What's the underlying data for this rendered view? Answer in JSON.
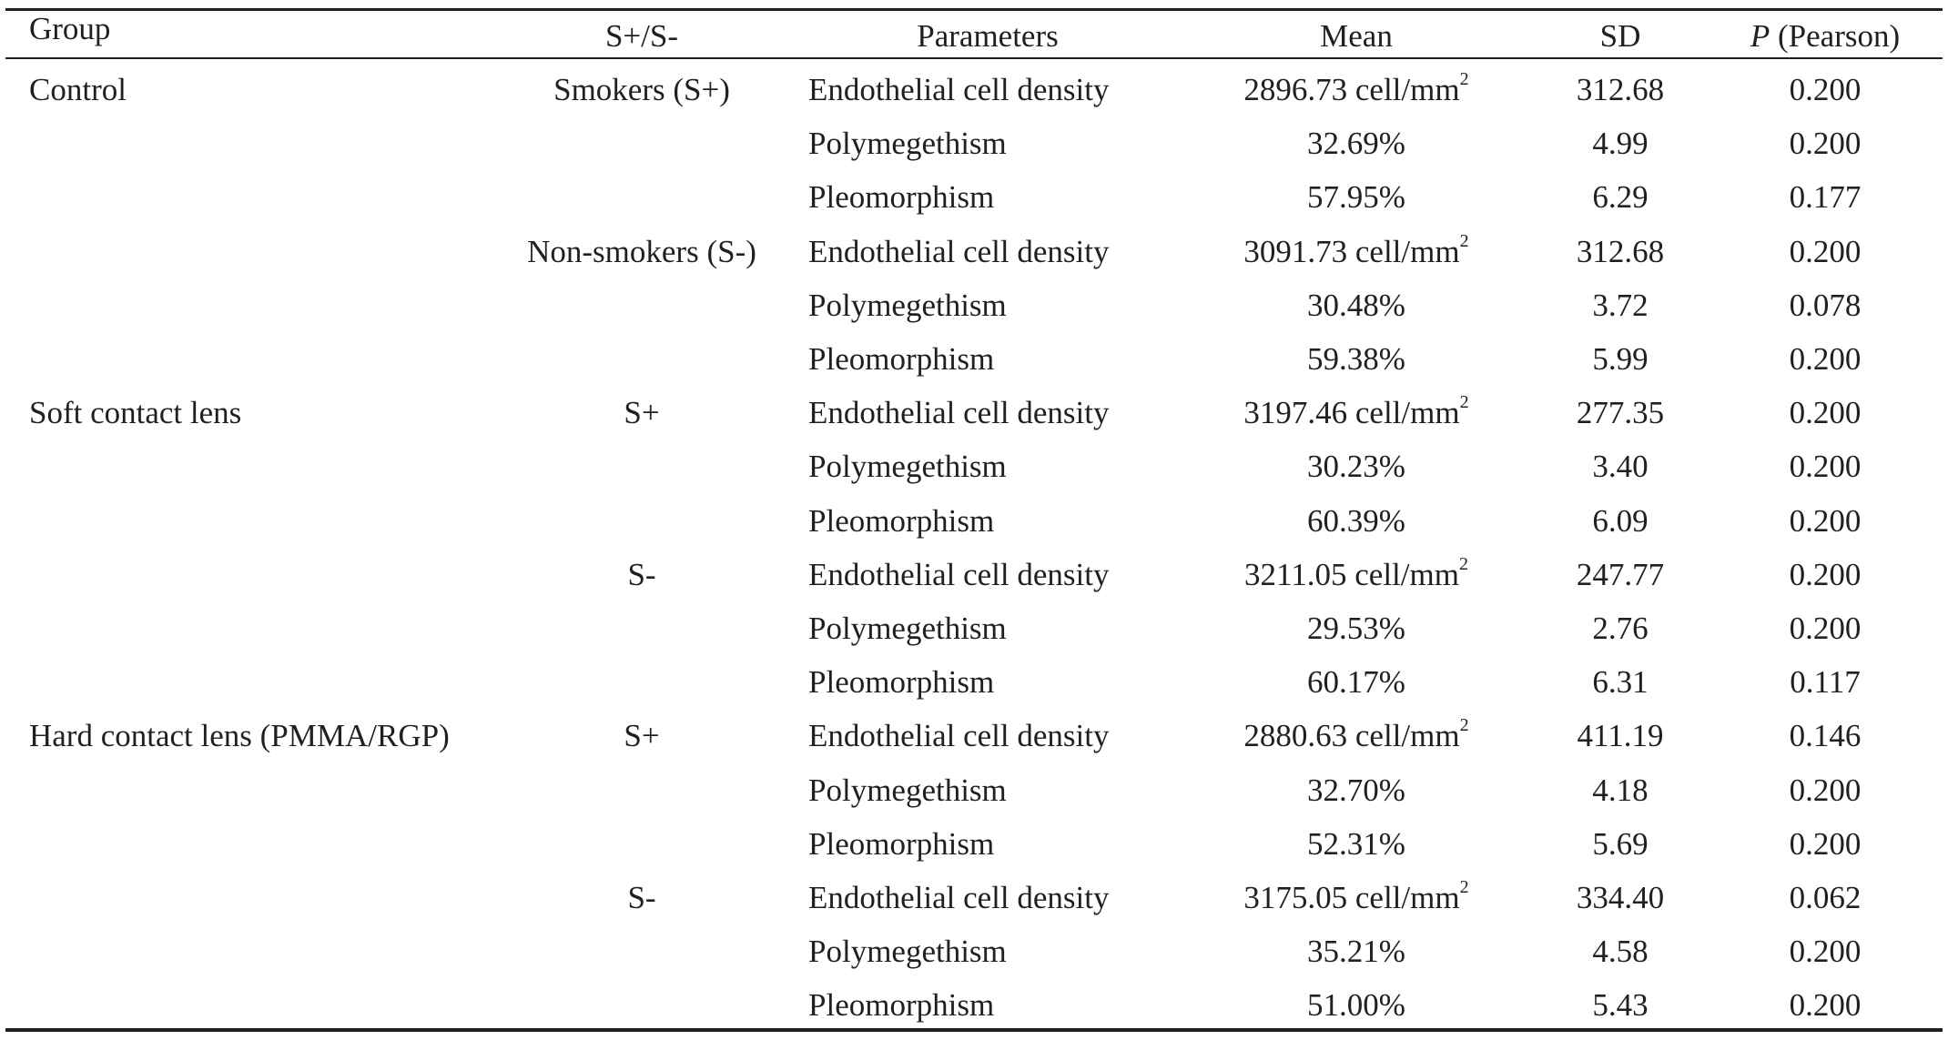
{
  "table": {
    "headers": {
      "group": "Group",
      "smoking": "S+/S-",
      "parameters": "Parameters",
      "mean": "Mean",
      "sd": "SD",
      "p_italic": "P",
      "p_rest": " (Pearson)"
    },
    "rows": [
      {
        "group": "Control",
        "smoking": "Smokers (S+)",
        "parameter": "Endothelial cell density",
        "mean": "2896.73 cell/mm",
        "sup": "2",
        "sd": "312.68",
        "p": "0.200"
      },
      {
        "group": "",
        "smoking": "",
        "parameter": "Polymegethism",
        "mean": "32.69%",
        "sup": "",
        "sd": "4.99",
        "p": "0.200"
      },
      {
        "group": "",
        "smoking": "",
        "parameter": "Pleomorphism",
        "mean": "57.95%",
        "sup": "",
        "sd": "6.29",
        "p": "0.177"
      },
      {
        "group": "",
        "smoking": "Non-smokers (S-)",
        "parameter": "Endothelial cell density",
        "mean": "3091.73 cell/mm",
        "sup": "2",
        "sd": "312.68",
        "p": "0.200"
      },
      {
        "group": "",
        "smoking": "",
        "parameter": "Polymegethism",
        "mean": "30.48%",
        "sup": "",
        "sd": "3.72",
        "p": "0.078"
      },
      {
        "group": "",
        "smoking": "",
        "parameter": "Pleomorphism",
        "mean": "59.38%",
        "sup": "",
        "sd": "5.99",
        "p": "0.200"
      },
      {
        "group": "Soft contact lens",
        "smoking": "S+",
        "parameter": "Endothelial cell density",
        "mean": "3197.46 cell/mm",
        "sup": "2",
        "sd": "277.35",
        "p": "0.200"
      },
      {
        "group": "",
        "smoking": "",
        "parameter": "Polymegethism",
        "mean": "30.23%",
        "sup": "",
        "sd": "3.40",
        "p": "0.200"
      },
      {
        "group": "",
        "smoking": "",
        "parameter": "Pleomorphism",
        "mean": "60.39%",
        "sup": "",
        "sd": "6.09",
        "p": "0.200"
      },
      {
        "group": "",
        "smoking": "S-",
        "parameter": "Endothelial cell density",
        "mean": "3211.05 cell/mm",
        "sup": "2",
        "sd": "247.77",
        "p": "0.200"
      },
      {
        "group": "",
        "smoking": "",
        "parameter": "Polymegethism",
        "mean": "29.53%",
        "sup": "",
        "sd": "2.76",
        "p": "0.200"
      },
      {
        "group": "",
        "smoking": "",
        "parameter": "Pleomorphism",
        "mean": "60.17%",
        "sup": "",
        "sd": "6.31",
        "p": "0.117"
      },
      {
        "group": "Hard contact lens (PMMA/RGP)",
        "smoking": "S+",
        "parameter": "Endothelial cell density",
        "mean": "2880.63 cell/mm",
        "sup": "2",
        "sd": "411.19",
        "p": "0.146"
      },
      {
        "group": "",
        "smoking": "",
        "parameter": "Polymegethism",
        "mean": "32.70%",
        "sup": "",
        "sd": "4.18",
        "p": "0.200"
      },
      {
        "group": "",
        "smoking": "",
        "parameter": "Pleomorphism",
        "mean": "52.31%",
        "sup": "",
        "sd": "5.69",
        "p": "0.200"
      },
      {
        "group": "",
        "smoking": "S-",
        "parameter": "Endothelial cell density",
        "mean": "3175.05 cell/mm",
        "sup": "2",
        "sd": "334.40",
        "p": "0.062"
      },
      {
        "group": "",
        "smoking": "",
        "parameter": "Polymegethism",
        "mean": "35.21%",
        "sup": "",
        "sd": "4.58",
        "p": "0.200"
      },
      {
        "group": "",
        "smoking": "",
        "parameter": "Pleomorphism",
        "mean": "51.00%",
        "sup": "",
        "sd": "5.43",
        "p": "0.200"
      }
    ]
  }
}
